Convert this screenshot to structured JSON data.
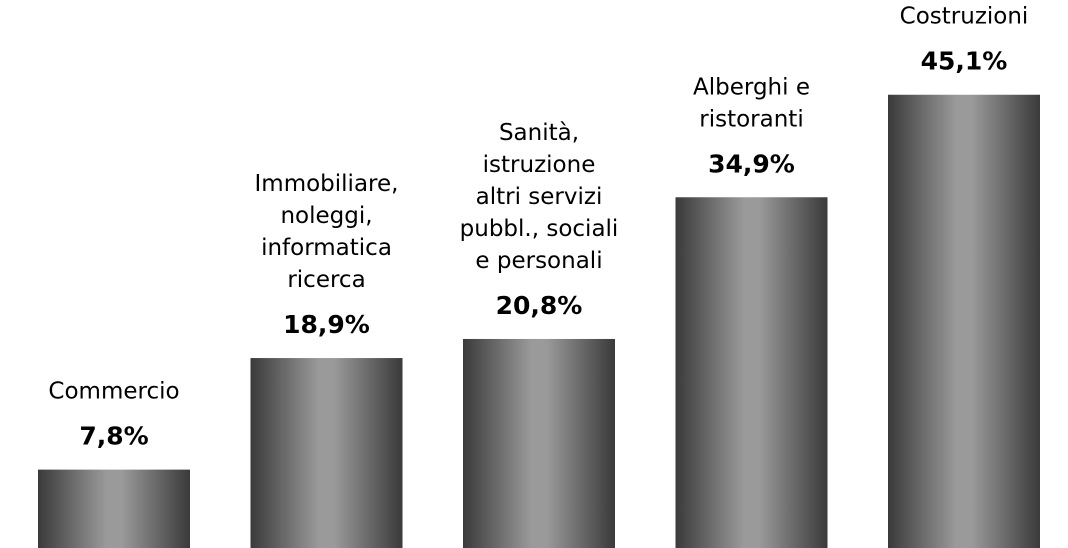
{
  "chart_data": {
    "type": "bar",
    "categories": [
      "Commercio",
      "Immobiliare,\nnoleggi,\ninformatica\nricerca",
      "Sanità,\nistruzione\naltri servizi\npubbl., sociali\ne personali",
      "Alberghi e\nristoranti",
      "Costruzioni"
    ],
    "values": [
      7.8,
      18.9,
      20.8,
      34.9,
      45.1
    ],
    "value_labels": [
      "7,8%",
      "18,9%",
      "20,8%",
      "34,9%",
      "45,1%"
    ],
    "color": "#808080"
  }
}
